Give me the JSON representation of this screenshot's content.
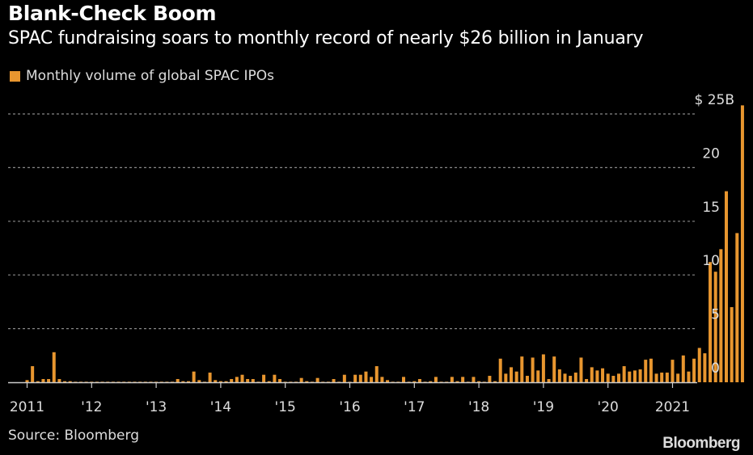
{
  "header": {
    "title": "Blank-Check Boom",
    "subtitle": "SPAC fundraising soars to monthly record of nearly $26 billion in January"
  },
  "footer": {
    "source": "Source: Bloomberg",
    "brand": "Bloomberg"
  },
  "colors": {
    "background": "#000000",
    "bar": "#E8962F",
    "grid": "#888888",
    "axis": "#CCCCCC",
    "text": "#DDDDDD"
  },
  "chart_data": {
    "type": "bar",
    "title": "Blank-Check Boom",
    "subtitle": "SPAC fundraising soars to monthly record of nearly $26 billion in January",
    "xlabel": "",
    "ylabel": "",
    "legend": [
      {
        "name": "Monthly volume of global SPAC IPOs",
        "color": "#E8962F"
      }
    ],
    "legend_position": "top-left",
    "ylim": [
      0,
      25
    ],
    "y_ticks": [
      0,
      5,
      10,
      15,
      20,
      25
    ],
    "y_tick_labels": [
      "0",
      "5",
      "10",
      "15",
      "20",
      "$ 25B"
    ],
    "y_axis_side": "right",
    "grid": true,
    "x_tick_labels": [
      "2011",
      "'12",
      "'13",
      "'14",
      "'15",
      "'16",
      "'17",
      "'18",
      "'19",
      "'20",
      "2021"
    ],
    "start": "2011-01",
    "unit": "USD billions",
    "series": [
      {
        "name": "Monthly volume of global SPAC IPOs",
        "values": [
          0.2,
          1.5,
          0.1,
          0.3,
          0.3,
          2.8,
          0.3,
          0.1,
          0.1,
          0.05,
          0.05,
          0.05,
          0.05,
          0.05,
          0.05,
          0.05,
          0.05,
          0.05,
          0.05,
          0.05,
          0.05,
          0.05,
          0.05,
          0.05,
          0.05,
          0.05,
          0.05,
          0.05,
          0.3,
          0.1,
          0.1,
          1.0,
          0.2,
          0.05,
          0.9,
          0.2,
          0.1,
          0.1,
          0.3,
          0.5,
          0.7,
          0.3,
          0.3,
          0.05,
          0.7,
          0.1,
          0.7,
          0.3,
          0.05,
          0.05,
          0.05,
          0.4,
          0.1,
          0.05,
          0.4,
          0.05,
          0.05,
          0.3,
          0.05,
          0.7,
          0.05,
          0.7,
          0.7,
          1.0,
          0.5,
          1.5,
          0.5,
          0.2,
          0.05,
          0.05,
          0.5,
          0.05,
          0.1,
          0.3,
          0.05,
          0.1,
          0.5,
          0.05,
          0.05,
          0.5,
          0.1,
          0.5,
          0.05,
          0.5,
          0.1,
          0.05,
          0.6,
          0.1,
          2.2,
          0.8,
          1.4,
          1.0,
          2.4,
          0.6,
          2.3,
          1.1,
          2.6,
          0.3,
          2.4,
          1.2,
          0.8,
          0.6,
          0.9,
          2.3,
          0.3,
          1.4,
          1.1,
          1.3,
          0.8,
          0.6,
          0.8,
          1.5,
          1.0,
          1.1,
          1.2,
          2.1,
          2.2,
          0.8,
          0.9,
          0.9,
          2.1,
          0.8,
          2.5,
          1.0,
          2.2,
          3.2,
          2.7,
          11.2,
          10.3,
          12.4,
          17.8,
          7.0,
          13.9,
          25.8
        ]
      }
    ]
  }
}
